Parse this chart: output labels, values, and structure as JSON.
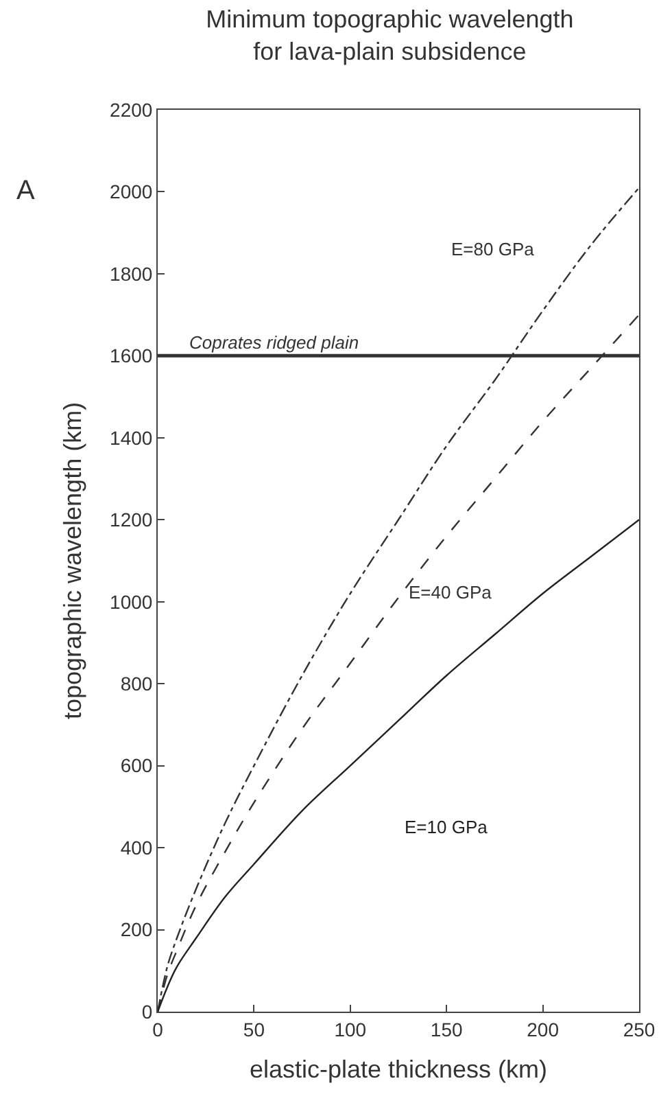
{
  "chart_data": {
    "type": "line",
    "title": "Minimum topographic wavelength\nfor lava-plain subsidence",
    "xlabel": "elastic-plate thickness (km)",
    "ylabel": "topographic wavelength (km)",
    "x": [
      0,
      5,
      10,
      20,
      35,
      50,
      75,
      100,
      125,
      150,
      175,
      200,
      225,
      250
    ],
    "series": [
      {
        "name": "E=80 GPa",
        "color": "#333333",
        "line_style": "dashdot",
        "values": [
          0,
          110,
          180,
          300,
          460,
          600,
          820,
          1020,
          1200,
          1380,
          1540,
          1710,
          1870,
          2010
        ]
      },
      {
        "name": "E=40 GPa",
        "color": "#333333",
        "line_style": "dashed",
        "values": [
          0,
          90,
          150,
          260,
          390,
          510,
          690,
          850,
          1010,
          1160,
          1300,
          1440,
          1570,
          1700
        ]
      },
      {
        "name": "E=10 GPa",
        "color": "#222222",
        "line_style": "solid",
        "values": [
          0,
          60,
          110,
          180,
          280,
          360,
          490,
          600,
          710,
          820,
          920,
          1020,
          1110,
          1200
        ]
      }
    ],
    "xlim": [
      0,
      250
    ],
    "xticks": [
      0,
      50,
      100,
      150,
      200,
      250
    ],
    "ylim": [
      0,
      2200
    ],
    "yticks": [
      0,
      200,
      400,
      600,
      800,
      1000,
      1200,
      1400,
      1600,
      1800,
      2000,
      2200
    ],
    "ref_lines": [
      {
        "axis": "y",
        "value": 1600,
        "label": "Coprates ridged plain",
        "color": "#333333"
      }
    ],
    "annotations": [
      "A"
    ],
    "grid": false,
    "legend": false,
    "marker": "none"
  }
}
